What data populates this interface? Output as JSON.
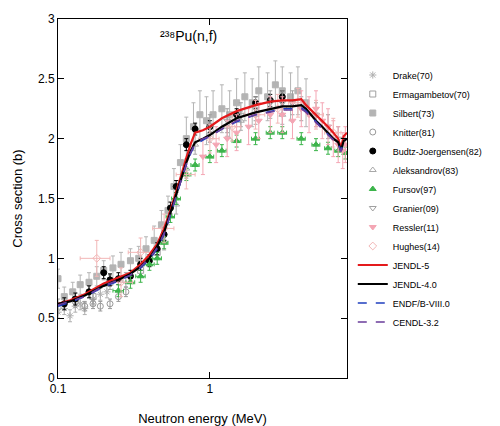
{
  "chart_data": {
    "type": "scatter",
    "title": "²³⁸Pu(n,f)",
    "x_label": "Neutron energy (MeV)",
    "y_label": "Cross section (b)",
    "log": "x",
    "grid": false,
    "legend": "right",
    "xlim": [
      0.1,
      8
    ],
    "xticks": [
      0.1,
      1
    ],
    "ylim": [
      0,
      3
    ],
    "yticks": [
      0,
      0.5,
      1,
      1.5,
      2,
      2.5,
      3
    ],
    "series": [
      {
        "name": "Drake(70)",
        "type": "scatter",
        "color": "#b0b0b0",
        "marker": "asterisk-open",
        "x": [
          0.1,
          0.11,
          0.12,
          0.13,
          0.14,
          0.15,
          0.17,
          0.19,
          0.21
        ],
        "values": [
          0.55,
          0.58,
          0.52,
          0.6,
          0.62,
          0.58,
          0.66,
          0.7,
          0.72
        ],
        "yerr": [
          0.05,
          0.05,
          0.05,
          0.05,
          0.05,
          0.05,
          0.05,
          0.05,
          0.05
        ]
      },
      {
        "name": "Ermagambetov(70)",
        "type": "scatter",
        "color": "#a0a0a0",
        "marker": "square-open",
        "x": [
          0.1,
          0.13,
          0.17,
          0.22,
          0.28,
          0.35,
          0.45
        ],
        "values": [
          0.6,
          0.65,
          0.68,
          0.8,
          0.82,
          0.9,
          1.05
        ],
        "yerr": [
          0.06,
          0.06,
          0.06,
          0.06,
          0.06,
          0.06,
          0.06
        ]
      },
      {
        "name": "Silbert(73)",
        "type": "scatter",
        "color": "#b4b4b4",
        "marker": "square",
        "x": [
          0.1,
          0.11,
          0.125,
          0.14,
          0.16,
          0.18,
          0.2,
          0.23,
          0.26,
          0.3,
          0.34,
          0.38,
          0.43,
          0.48,
          0.53,
          0.58,
          0.64,
          0.7,
          0.78,
          0.86,
          0.95,
          1.05,
          1.2,
          1.35,
          1.5,
          1.7,
          1.9,
          2.1,
          2.4,
          2.7,
          3.0,
          3.4,
          3.8,
          4.3
        ],
        "values": [
          0.83,
          0.68,
          0.72,
          0.78,
          0.8,
          0.85,
          0.9,
          0.92,
          0.95,
          0.98,
          1.0,
          1.08,
          1.15,
          1.28,
          1.4,
          1.6,
          1.8,
          2.0,
          2.1,
          2.2,
          2.15,
          2.2,
          2.25,
          2.2,
          2.3,
          2.35,
          2.3,
          2.4,
          2.35,
          2.45,
          2.4,
          2.35,
          2.4,
          2.3
        ],
        "yerr": [
          0.08,
          0.08,
          0.08,
          0.08,
          0.08,
          0.08,
          0.08,
          0.1,
          0.1,
          0.1,
          0.1,
          0.1,
          0.12,
          0.12,
          0.12,
          0.15,
          0.15,
          0.18,
          0.2,
          0.2,
          0.2,
          0.2,
          0.2,
          0.2,
          0.2,
          0.2,
          0.2,
          0.2,
          0.2,
          0.2,
          0.2,
          0.2,
          0.2,
          0.2
        ]
      },
      {
        "name": "Knitter(81)",
        "type": "scatter",
        "color": "#999999",
        "marker": "circle-open",
        "x": [
          0.15,
          0.17,
          0.19,
          0.22,
          0.25,
          0.28
        ],
        "values": [
          0.6,
          0.62,
          0.6,
          0.62,
          0.68,
          0.72
        ],
        "yerr": [
          0.04,
          0.04,
          0.04,
          0.04,
          0.04,
          0.04
        ]
      },
      {
        "name": "Budtz-Joergensen(82)",
        "type": "scatter",
        "color": "#000000",
        "marker": "circle",
        "x": [
          0.11,
          0.13,
          0.16,
          0.2,
          0.22,
          0.25,
          0.3,
          0.35,
          0.4,
          0.45,
          0.5,
          0.55,
          0.6,
          0.7,
          0.8,
          1.0,
          1.5,
          2.0,
          2.5,
          3.0
        ],
        "values": [
          0.62,
          0.66,
          0.72,
          0.88,
          0.82,
          0.83,
          0.85,
          0.95,
          0.98,
          1.08,
          1.2,
          1.42,
          1.6,
          1.95,
          2.08,
          2.1,
          2.2,
          2.3,
          2.32,
          2.35
        ],
        "yerr": [
          0.05,
          0.05,
          0.05,
          0.05,
          0.05,
          0.05,
          0.05,
          0.05,
          0.05,
          0.05,
          0.05,
          0.05,
          0.05,
          0.05,
          0.05,
          0.05,
          0.05,
          0.05,
          0.05,
          0.05
        ]
      },
      {
        "name": "Aleksandrov(83)",
        "type": "scatter",
        "color": "#a8a8a8",
        "marker": "triangle-up-open",
        "x": [
          0.5,
          0.6,
          0.7,
          0.8,
          1.0,
          1.3,
          1.6,
          2.0,
          2.5,
          3.0
        ],
        "values": [
          1.15,
          1.45,
          1.75,
          1.95,
          2.05,
          2.1,
          2.15,
          2.2,
          2.25,
          2.2
        ],
        "yerr": [
          0.08,
          0.08,
          0.08,
          0.08,
          0.08,
          0.08,
          0.08,
          0.08,
          0.08,
          0.08
        ]
      },
      {
        "name": "Fursov(97)",
        "type": "scatter",
        "color": "#3cb44b",
        "marker": "triangle-up",
        "x": [
          0.25,
          0.3,
          0.35,
          0.4,
          0.45,
          0.5,
          0.55,
          0.6,
          0.7,
          0.8,
          1.0,
          1.2,
          1.5,
          2.0,
          2.5,
          3.0,
          4.0,
          5.0,
          6.0,
          7.0,
          7.8
        ],
        "values": [
          0.73,
          0.8,
          0.85,
          0.95,
          1.0,
          1.13,
          1.35,
          1.5,
          1.7,
          1.78,
          1.85,
          1.9,
          1.98,
          2.0,
          2.05,
          2.05,
          2.0,
          1.95,
          1.92,
          1.9,
          1.88
        ],
        "xerr": [
          0.02,
          0.02,
          0.025,
          0.03,
          0.03,
          0.03,
          0.035,
          0.04,
          0.05,
          0.05,
          0.06,
          0.08,
          0.1,
          0.12,
          0.15,
          0.2,
          0.25,
          0.3,
          0.3,
          0.35,
          0.35
        ],
        "yerr": [
          0.05,
          0.05,
          0.05,
          0.05,
          0.05,
          0.05,
          0.05,
          0.05,
          0.05,
          0.05,
          0.05,
          0.05,
          0.05,
          0.05,
          0.05,
          0.05,
          0.05,
          0.05,
          0.05,
          0.05,
          0.05
        ]
      },
      {
        "name": "Granier(09)",
        "type": "scatter",
        "color": "#a0a0a0",
        "marker": "triangle-down-open",
        "x": [
          1.0,
          1.3,
          1.6,
          2.0,
          2.5,
          3.0,
          3.5,
          4.0,
          5.0,
          6.0,
          7.0
        ],
        "values": [
          2.1,
          2.15,
          2.2,
          2.25,
          2.3,
          2.3,
          2.3,
          2.25,
          2.2,
          2.1,
          2.0
        ],
        "yerr": [
          0.1,
          0.1,
          0.1,
          0.1,
          0.1,
          0.1,
          0.1,
          0.1,
          0.1,
          0.1,
          0.1
        ]
      },
      {
        "name": "Ressler(11)",
        "type": "scatter",
        "color": "#f4a6b4",
        "marker": "triangle-down",
        "x": [
          0.9,
          1.1,
          1.3,
          1.5,
          1.8,
          2.1,
          2.5,
          3.0,
          3.5,
          4.0,
          4.5,
          5.0,
          5.5,
          6.0,
          6.5,
          7.0,
          7.5,
          7.8
        ],
        "values": [
          1.85,
          1.95,
          2.0,
          2.05,
          2.1,
          2.15,
          2.2,
          2.2,
          2.15,
          2.25,
          2.2,
          2.25,
          2.15,
          2.1,
          2.0,
          1.95,
          1.9,
          1.95
        ],
        "yerr": [
          0.15,
          0.15,
          0.15,
          0.15,
          0.15,
          0.15,
          0.15,
          0.15,
          0.15,
          0.15,
          0.15,
          0.15,
          0.15,
          0.15,
          0.15,
          0.15,
          0.15,
          0.15
        ]
      },
      {
        "name": "Hughes(14)",
        "type": "scatter",
        "color": "#f2b6b6",
        "marker": "diamond-open",
        "x": [
          0.18,
          0.26,
          0.35,
          0.5,
          0.7,
          1.0,
          1.4,
          2.0,
          2.8,
          3.8,
          5.0,
          6.5
        ],
        "values": [
          1.0,
          0.8,
          1.05,
          1.25,
          1.7,
          2.0,
          2.1,
          2.2,
          2.25,
          2.3,
          2.2,
          2.05
        ],
        "xerr": [
          0.04,
          0.05,
          0.06,
          0.08,
          0.1,
          0.15,
          0.2,
          0.3,
          0.4,
          0.5,
          0.6,
          0.8
        ],
        "yerr": [
          0.15,
          0.12,
          0.12,
          0.12,
          0.12,
          0.12,
          0.12,
          0.12,
          0.12,
          0.12,
          0.12,
          0.12
        ]
      },
      {
        "name": "JENDL-5",
        "type": "line",
        "color": "#e41a1c",
        "line_style": "solid",
        "x": [
          0.1,
          0.12,
          0.15,
          0.2,
          0.25,
          0.3,
          0.35,
          0.4,
          0.45,
          0.5,
          0.55,
          0.6,
          0.65,
          0.7,
          0.75,
          0.8,
          0.9,
          1.0,
          1.2,
          1.5,
          2.0,
          2.5,
          3.0,
          3.5,
          4.0,
          4.3,
          5.0,
          5.5,
          6.0,
          6.5,
          7.0,
          7.3,
          7.6,
          8.0
        ],
        "values": [
          0.62,
          0.65,
          0.7,
          0.79,
          0.84,
          0.88,
          0.95,
          1.03,
          1.12,
          1.25,
          1.4,
          1.55,
          1.7,
          1.84,
          1.96,
          2.05,
          2.07,
          2.1,
          2.17,
          2.23,
          2.28,
          2.31,
          2.32,
          2.32,
          2.33,
          2.28,
          2.2,
          2.15,
          2.1,
          2.05,
          2.0,
          1.92,
          2.02,
          2.05
        ]
      },
      {
        "name": "JENDL-4.0",
        "type": "line",
        "color": "#000000",
        "line_style": "solid",
        "x": [
          0.1,
          0.12,
          0.15,
          0.2,
          0.25,
          0.3,
          0.35,
          0.4,
          0.45,
          0.5,
          0.55,
          0.6,
          0.65,
          0.7,
          0.75,
          0.8,
          0.9,
          1.0,
          1.2,
          1.5,
          2.0,
          2.5,
          3.0,
          3.5,
          4.0,
          4.3,
          5.0,
          5.5,
          6.0,
          6.5,
          7.0,
          7.3,
          7.6,
          8.0
        ],
        "values": [
          0.62,
          0.64,
          0.69,
          0.77,
          0.82,
          0.87,
          0.93,
          1.0,
          1.1,
          1.22,
          1.38,
          1.53,
          1.68,
          1.8,
          1.9,
          1.97,
          2.0,
          2.03,
          2.1,
          2.17,
          2.22,
          2.25,
          2.27,
          2.27,
          2.28,
          2.25,
          2.15,
          2.1,
          2.05,
          2.0,
          1.97,
          1.9,
          1.98,
          2.0
        ]
      },
      {
        "name": "ENDF/B-VIII.0",
        "type": "line",
        "color": "#1f3fbf",
        "line_style": "dash",
        "x": [
          0.1,
          0.12,
          0.15,
          0.2,
          0.25,
          0.3,
          0.35,
          0.4,
          0.45,
          0.5,
          0.55,
          0.6,
          0.65,
          0.7,
          0.75,
          0.8,
          0.9,
          1.0,
          1.2,
          1.5,
          2.0,
          2.5,
          3.0,
          3.5,
          4.0,
          4.3,
          5.0,
          5.5,
          6.0,
          6.5,
          7.0,
          7.3,
          7.6,
          8.0
        ],
        "values": [
          0.6,
          0.63,
          0.68,
          0.76,
          0.81,
          0.86,
          0.92,
          0.99,
          1.08,
          1.2,
          1.36,
          1.52,
          1.66,
          1.78,
          1.88,
          1.95,
          1.99,
          2.02,
          2.08,
          2.14,
          2.2,
          2.23,
          2.25,
          2.25,
          2.26,
          2.23,
          2.14,
          2.09,
          2.04,
          1.99,
          1.96,
          1.9,
          1.97,
          1.99
        ]
      },
      {
        "name": "CENDL-3.2",
        "type": "line",
        "color": "#6a3d9a",
        "line_style": "dash",
        "x": [
          0.1,
          0.12,
          0.15,
          0.2,
          0.25,
          0.3,
          0.35,
          0.4,
          0.45,
          0.5,
          0.55,
          0.6,
          0.65,
          0.7,
          0.75,
          0.8,
          0.9,
          1.0,
          1.2,
          1.5,
          2.0,
          2.5,
          3.0,
          3.5,
          4.0,
          4.3,
          5.0,
          5.5,
          6.0,
          6.5,
          7.0,
          7.3,
          7.6,
          8.0
        ],
        "values": [
          0.61,
          0.64,
          0.68,
          0.77,
          0.82,
          0.86,
          0.93,
          1.0,
          1.09,
          1.21,
          1.37,
          1.52,
          1.67,
          1.79,
          1.89,
          1.96,
          2.0,
          2.02,
          2.08,
          2.15,
          2.2,
          2.22,
          2.24,
          2.24,
          2.25,
          2.22,
          2.13,
          2.08,
          2.03,
          1.99,
          1.95,
          1.89,
          1.96,
          1.98
        ]
      }
    ]
  }
}
